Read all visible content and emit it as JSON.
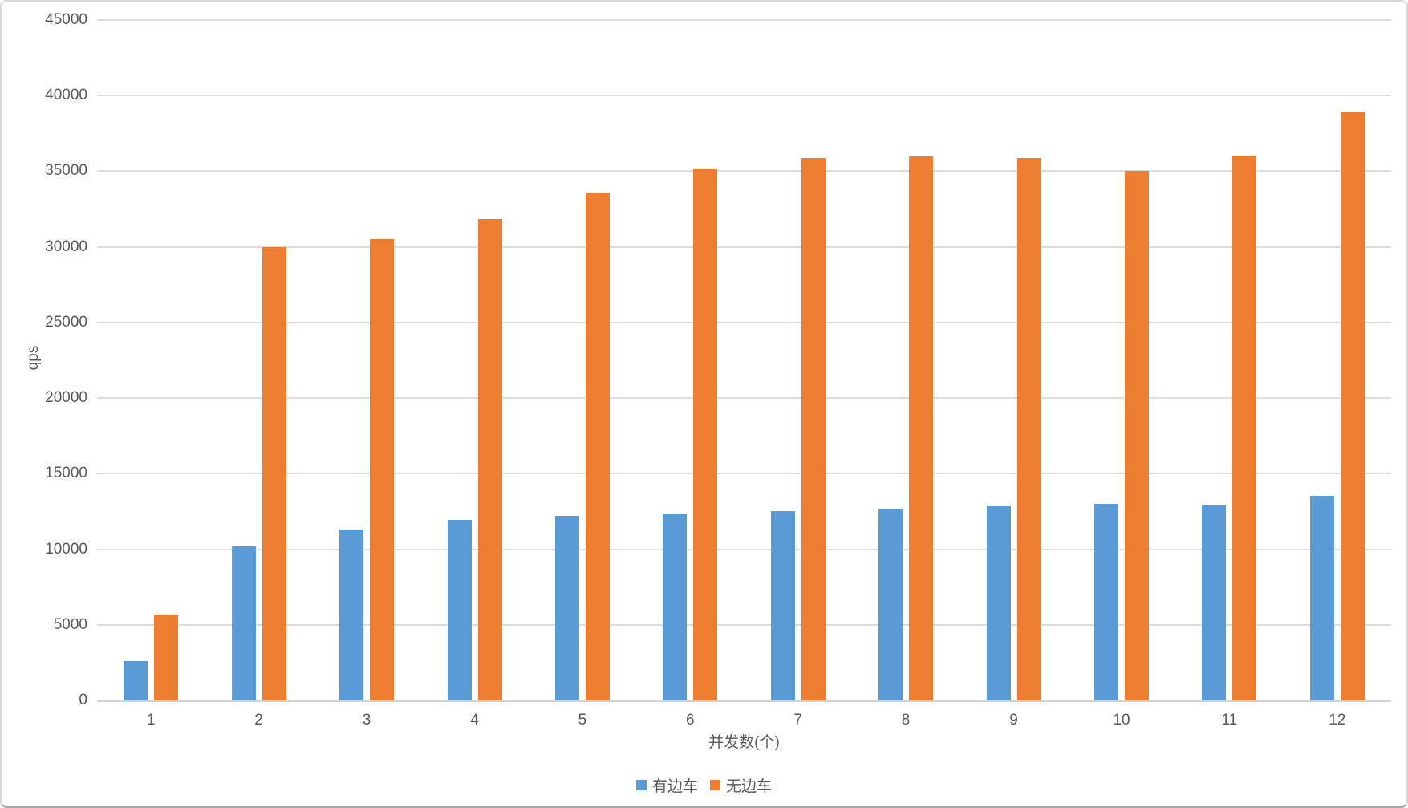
{
  "chart_data": {
    "type": "bar",
    "title": "",
    "xlabel": "并发数(个)",
    "ylabel": "qps",
    "categories": [
      "1",
      "2",
      "3",
      "4",
      "5",
      "6",
      "7",
      "8",
      "9",
      "10",
      "11",
      "12"
    ],
    "series": [
      {
        "name": "有边车",
        "color": "#5B9BD5",
        "values": [
          2600,
          10200,
          11300,
          11950,
          12200,
          12350,
          12550,
          12700,
          12900,
          13000,
          12950,
          13550
        ]
      },
      {
        "name": "无边车",
        "color": "#ED7D31",
        "values": [
          5700,
          30000,
          30500,
          31850,
          33600,
          35200,
          35850,
          36000,
          35850,
          35000,
          36050,
          38950
        ]
      }
    ],
    "ylim": [
      0,
      45000
    ],
    "y_ticks": [
      0,
      5000,
      10000,
      15000,
      20000,
      25000,
      30000,
      35000,
      40000,
      45000
    ],
    "grid": true,
    "legend_position": "bottom"
  },
  "layout_colors": {
    "text": "#595959",
    "gridline": "#dcdcdc",
    "axis_line": "#d2d2d2",
    "background": "#ffffff"
  }
}
